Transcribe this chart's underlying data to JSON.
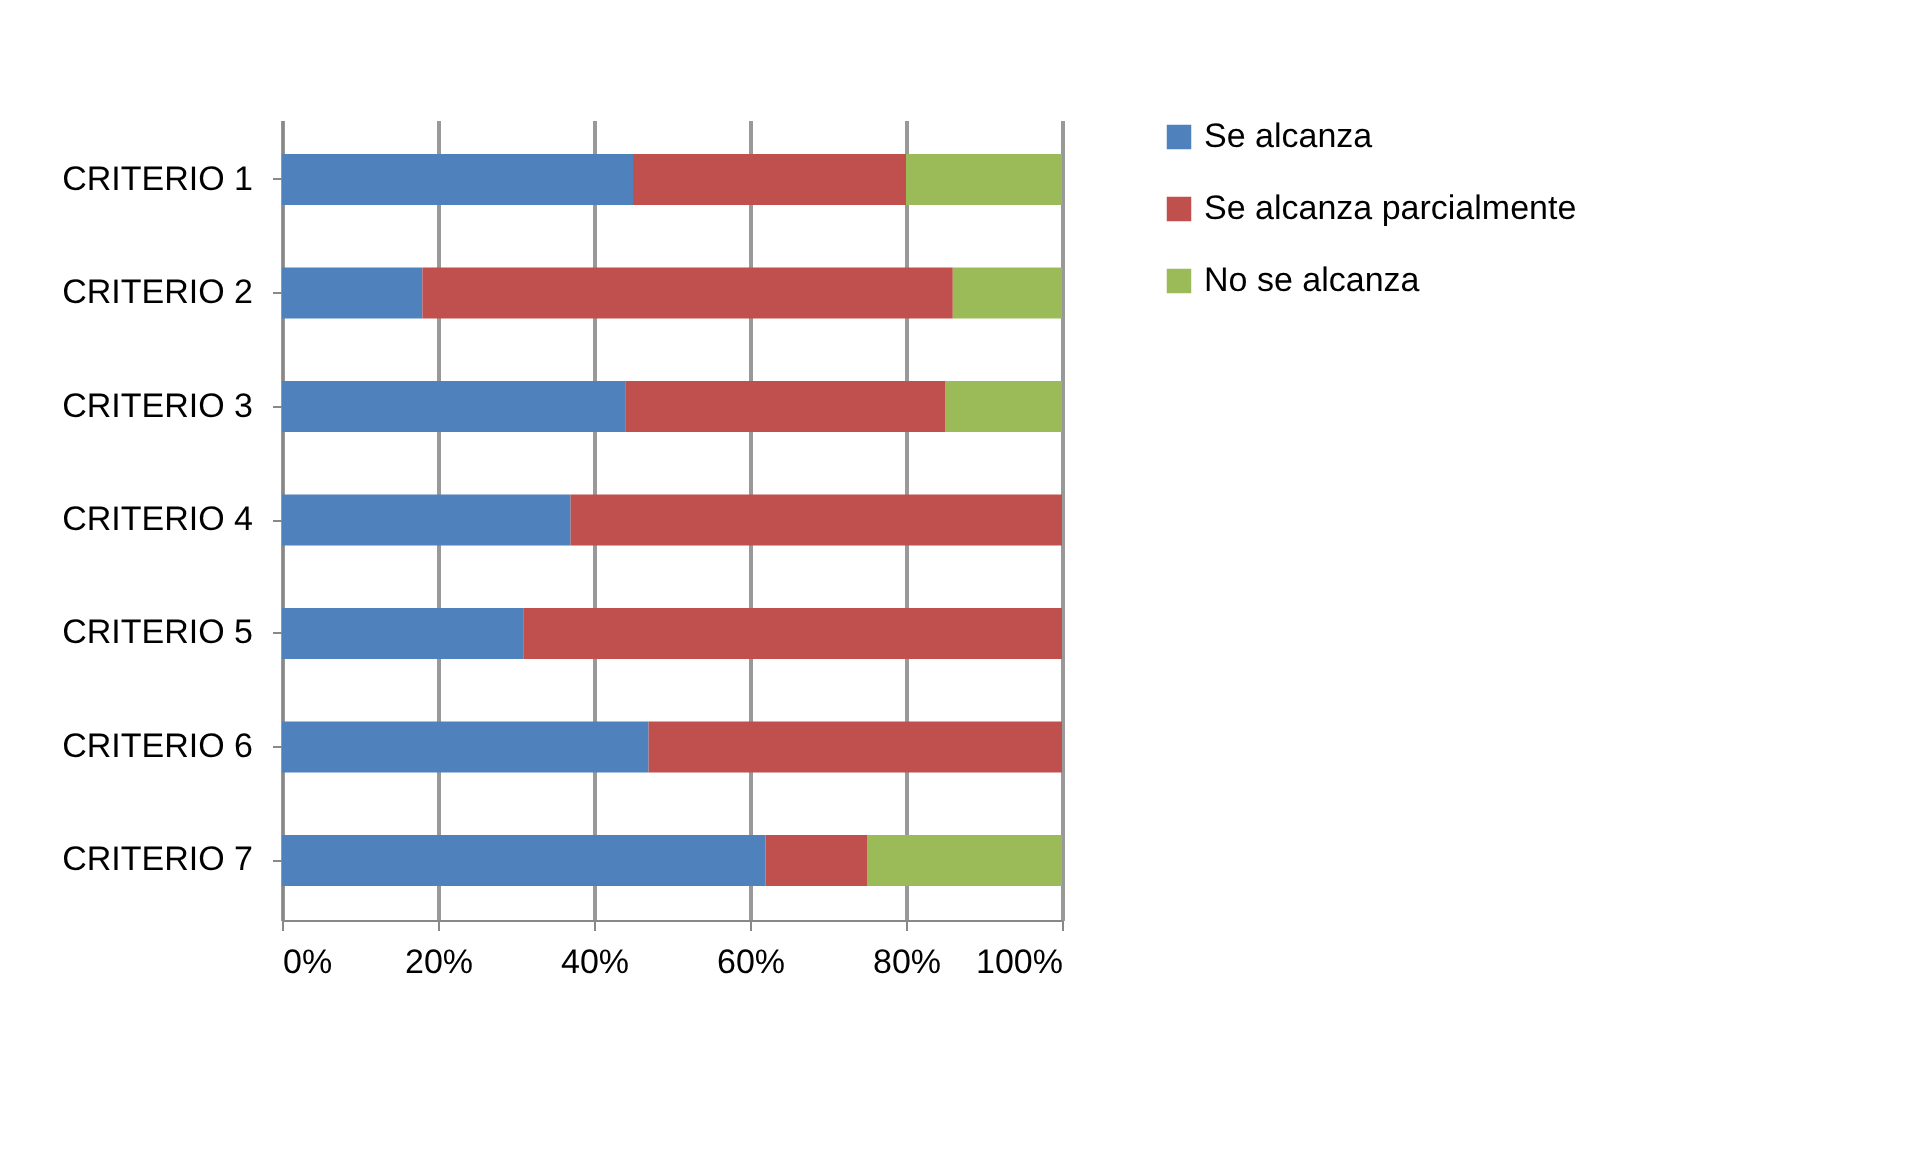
{
  "chart_data": {
    "type": "bar",
    "orientation": "horizontal",
    "stacked": true,
    "categories": [
      "CRITERIO 1",
      "CRITERIO 2",
      "CRITERIO 3",
      "CRITERIO 4",
      "CRITERIO 5",
      "CRITERIO 6",
      "CRITERIO 7"
    ],
    "series": [
      {
        "name": "Se alcanza",
        "color": "#4f81bd",
        "values": [
          45,
          18,
          44,
          37,
          31,
          47,
          62
        ]
      },
      {
        "name": "Se alcanza parcialmente",
        "color": "#c0504d",
        "values": [
          35,
          68,
          41,
          63,
          69,
          53,
          13
        ]
      },
      {
        "name": "No se alcanza",
        "color": "#9bbb59",
        "values": [
          20,
          14,
          15,
          0,
          0,
          0,
          25
        ]
      }
    ],
    "xlim": [
      0,
      100
    ],
    "xticks": [
      {
        "value": 0,
        "label": "0%"
      },
      {
        "value": 20,
        "label": "20%"
      },
      {
        "value": 40,
        "label": "40%"
      },
      {
        "value": 60,
        "label": "60%"
      },
      {
        "value": 80,
        "label": "80%"
      },
      {
        "value": 100,
        "label": "100%"
      }
    ],
    "grid": "x",
    "legend": "right"
  }
}
